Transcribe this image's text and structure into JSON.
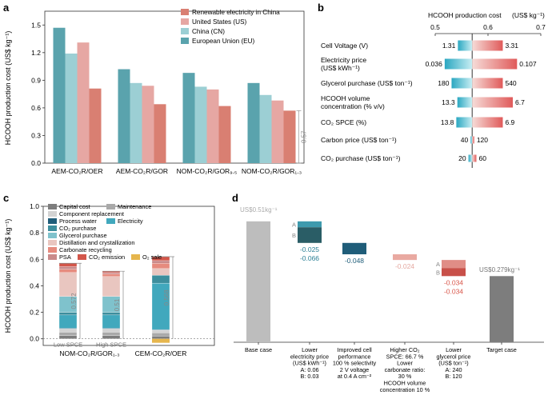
{
  "colors": {
    "renewable": "#d97f72",
    "us": "#e6a7a3",
    "cn": "#9ccfd4",
    "eu": "#5aa3ad",
    "capital": "#7d7d7d",
    "maintenance": "#a9a9a9",
    "component": "#d3d3d3",
    "process_water": "#1f5d79",
    "electricity": "#41a8bd",
    "co2_purchase": "#3d8e9d",
    "glycerol": "#7fc2cc",
    "distillation": "#e9c6c0",
    "carbonate": "#e68b7e",
    "psa": "#c98a8a",
    "co2_emission": "#d3564a",
    "o2_sale": "#e6b64d",
    "base_bar": "#bdbdbd",
    "neg_blue": "#2a6f86",
    "neg_pink": "#e9a9a1"
  },
  "panel_a": {
    "label": "a",
    "ylabel": "HCOOH production cost (US$ kg⁻¹)",
    "legend": [
      "Renewable electricity in China",
      "United States (US)",
      "China (CN)",
      "European Union (EU)"
    ],
    "bracket_label": "0.57",
    "chart_data": {
      "type": "bar",
      "categories": [
        "AEM-CO₂R/OER",
        "AEM-CO₂R/GOR",
        "NOM-CO₂R/GOR₉.₅",
        "NOM-CO₂R/GOR₁.₃"
      ],
      "series": [
        {
          "name": "European Union (EU)",
          "values": [
            1.47,
            1.02,
            0.98,
            0.87
          ]
        },
        {
          "name": "China (CN)",
          "values": [
            1.19,
            0.87,
            0.83,
            0.74
          ]
        },
        {
          "name": "United States (US)",
          "values": [
            1.31,
            0.84,
            0.8,
            0.68
          ]
        },
        {
          "name": "Renewable electricity in China",
          "values": [
            0.81,
            0.64,
            0.62,
            0.57
          ]
        }
      ],
      "ylim": [
        0,
        1.65
      ],
      "yticks": [
        "0.0",
        "0.3",
        "0.6",
        "0.9",
        "1.2",
        "1.5"
      ]
    }
  },
  "panel_b": {
    "label": "b",
    "title": "HCOOH production cost",
    "unit": "(US$ kg⁻¹)",
    "chart_data": {
      "type": "tornado",
      "xlim": [
        0.5,
        0.7
      ],
      "xticks": [
        "0.5",
        "0.6",
        "0.7"
      ],
      "baseline": 0.57,
      "rows": [
        {
          "label1": "Cell Voltage (V)",
          "label2": "",
          "low_label": "1.31",
          "high_label": "3.31",
          "low": 0.543,
          "high": 0.628
        },
        {
          "label1": "Electricity price",
          "label2": "(US$ kWh⁻¹)",
          "low_label": "0.036",
          "high_label": "0.107",
          "low": 0.518,
          "high": 0.655
        },
        {
          "label1": "Glycerol purchase (US$ ton⁻¹)",
          "label2": "",
          "low_label": "180",
          "high_label": "540",
          "low": 0.531,
          "high": 0.628
        },
        {
          "label1": "HCOOH volume",
          "label2": "concentration (% v/v)",
          "low_label": "13.3",
          "high_label": "6.7",
          "low": 0.542,
          "high": 0.647
        },
        {
          "label1": "CO₂ SPCE (%)",
          "label2": "",
          "low_label": "13.8",
          "high_label": "6.9",
          "low": 0.54,
          "high": 0.628
        },
        {
          "label1": "Carbon price (US$ ton⁻¹)",
          "label2": "",
          "low_label": "40",
          "high_label": "120",
          "low": 0.567,
          "high": 0.574
        },
        {
          "label1": "CO₂ purchase (US$ ton⁻¹)",
          "label2": "",
          "low_label": "20",
          "high_label": "60",
          "low": 0.563,
          "high": 0.578
        }
      ]
    }
  },
  "panel_c": {
    "label": "c",
    "ylabel": "HCOOH production cost (US$ kg⁻¹)",
    "legend": [
      "Capital cost",
      "Maintenance",
      "Component replacement",
      "Process water",
      "Electricity",
      "CO₂ purchase",
      "Glycerol purchase",
      "Distillation and crystallization",
      "Carbonate recycling",
      "PSA",
      "CO₂ emission",
      "O₂ sale"
    ],
    "bar_labels": [
      "Low SPCE",
      "High SPCE"
    ],
    "bracket_labels": [
      "0.572",
      "0.51",
      "0.568"
    ],
    "chart_data": {
      "type": "stacked-bar",
      "categories": [
        "NOM-CO₂R/GOR₁.₃",
        "CEM-CO₂R/OER"
      ],
      "ylim": [
        -0.05,
        1.0
      ],
      "yticks": [
        "0.0",
        "0.2",
        "0.4",
        "0.6",
        "0.8",
        "1.0"
      ],
      "bars": [
        {
          "name": "Low SPCE",
          "segments": [
            0.025,
            0.025,
            0.025,
            0.005,
            0.1,
            0.02,
            0.12,
            0.18,
            0.025,
            0.02,
            0.025
          ]
        },
        {
          "name": "High SPCE",
          "segments": [
            0.025,
            0.025,
            0.025,
            0.005,
            0.1,
            0.02,
            0.12,
            0.15,
            0.02,
            0.01,
            0.01
          ]
        },
        {
          "name": "CEM-CO₂R/OER",
          "segments": [
            0.02,
            0.025,
            0.02,
            0.005,
            0.35,
            0.06,
            0.0,
            0.05,
            0.04,
            0.02,
            0.03
          ],
          "o2_sale": -0.03
        }
      ]
    }
  },
  "panel_d": {
    "label": "d",
    "base_label": "US$0.51kg⁻¹",
    "target_label": "US$0.279kg⁻¹",
    "chart_data": {
      "type": "waterfall",
      "start": 0.51,
      "end": 0.279,
      "steps": [
        {
          "a": -0.025,
          "b": -0.066,
          "labels": [
            "-0.025",
            "-0.066"
          ]
        },
        {
          "a": -0.048,
          "labels": [
            "-0.048"
          ]
        },
        {
          "a": -0.024,
          "labels": [
            "-0.024"
          ]
        },
        {
          "a": -0.034,
          "b": -0.034,
          "labels": [
            "-0.034",
            "-0.034"
          ]
        }
      ]
    },
    "step_ab": [
      "A",
      "B"
    ],
    "xlabels": [
      {
        "lines": [
          "Base case"
        ]
      },
      {
        "lines": [
          "Lower",
          "electricity price",
          "(US$ kWh⁻¹)",
          "A: 0.06",
          "B: 0.03"
        ]
      },
      {
        "lines": [
          "Improved cell",
          "performance",
          "100 % selectivity",
          "2 V voltage",
          "at 0.4 A cm⁻²"
        ]
      },
      {
        "lines": [
          "Higher CO₂",
          "SPCE: 66.7 %",
          "Lower",
          "carbonate ratio:",
          "30 %",
          "HCOOH volume",
          "concentration 10 %"
        ]
      },
      {
        "lines": [
          "Lower",
          "glycerol price",
          "(US$ ton⁻¹)",
          "A: 240",
          "B: 120"
        ]
      },
      {
        "lines": [
          "Target case"
        ]
      }
    ]
  }
}
